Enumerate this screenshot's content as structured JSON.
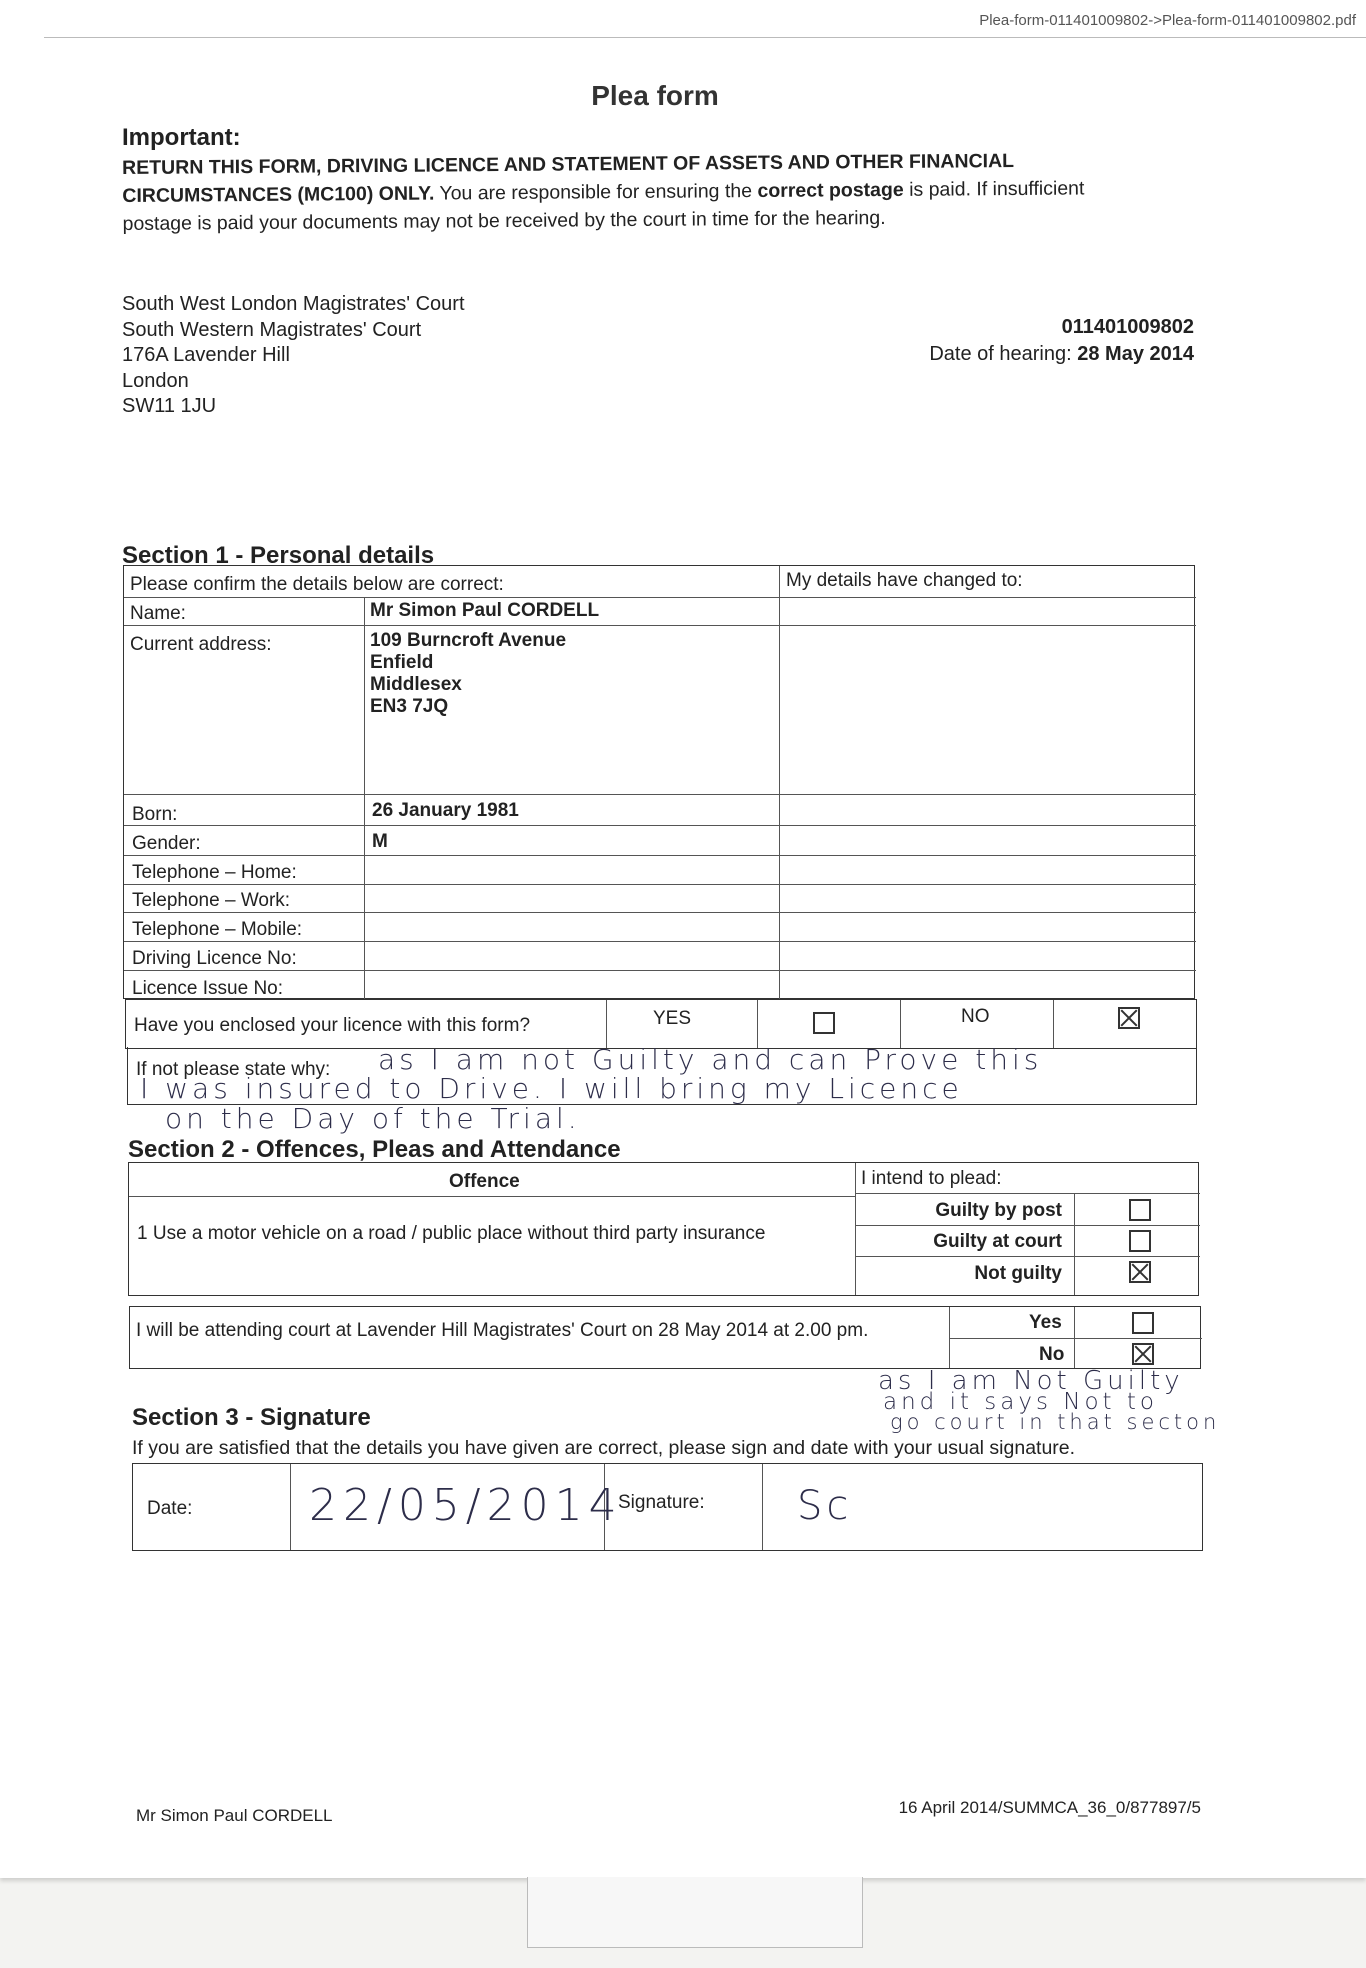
{
  "header": {
    "file_path": "Plea-form-011401009802->Plea-form-011401009802.pdf"
  },
  "title": "Plea form",
  "important": {
    "heading": "Important:",
    "bold_text": "RETURN THIS FORM, DRIVING LICENCE AND STATEMENT OF ASSETS AND OTHER FINANCIAL CIRCUMSTANCES (MC100) ONLY.",
    "text_before": "You are responsible for ensuring the",
    "bold_postage": "correct postage",
    "text_after": "is paid. If insufficient postage is paid your documents may not be received by the court in time for the hearing."
  },
  "court_address": [
    "South West London Magistrates' Court",
    "South Western Magistrates' Court",
    "176A Lavender Hill",
    "London",
    "SW11 1JU"
  ],
  "reference": {
    "number": "011401009802",
    "hearing_label": "Date of hearing:",
    "hearing_date": "28 May 2014"
  },
  "section1": {
    "title": "Section 1 - Personal details",
    "confirm_label": "Please confirm the details below are correct:",
    "changed_label": "My details have changed to:",
    "rows": [
      {
        "label": "Name:",
        "value": "Mr Simon Paul CORDELL"
      },
      {
        "label": "Current address:",
        "value": "109 Burncroft Avenue\nEnfield\nMiddlesex\nEN3 7JQ"
      },
      {
        "label": "Born:",
        "value": "26 January 1981"
      },
      {
        "label": "Gender:",
        "value": "M"
      },
      {
        "label": "Telephone – Home:",
        "value": ""
      },
      {
        "label": "Telephone – Work:",
        "value": ""
      },
      {
        "label": "Telephone – Mobile:",
        "value": ""
      },
      {
        "label": "Driving Licence No:",
        "value": ""
      },
      {
        "label": "Licence Issue No:",
        "value": ""
      }
    ],
    "licence_question": "Have you enclosed your licence with this form?",
    "yes_label": "YES",
    "no_label": "NO",
    "licence_yes_checked": false,
    "licence_no_checked": true,
    "reason_label": "If not please state why:",
    "reason_handwritten": [
      "as I am not Guilty and can Prove this",
      "I was insured to Drive. I will bring my Licence",
      "on the Day of the Trial."
    ]
  },
  "section2": {
    "title": "Section 2 - Offences, Pleas and Attendance",
    "offence_header": "Offence",
    "plea_header": "I intend to plead:",
    "offence": "1 Use a motor vehicle on a road / public place without third party insurance",
    "pleas": [
      {
        "label": "Guilty by post",
        "checked": false
      },
      {
        "label": "Guilty at court",
        "checked": false
      },
      {
        "label": "Not guilty",
        "checked": true
      }
    ],
    "attendance_text": "I will be attending court at Lavender Hill Magistrates' Court on 28 May 2014 at 2.00 pm.",
    "attendance": [
      {
        "label": "Yes",
        "checked": false
      },
      {
        "label": "No",
        "checked": true
      }
    ],
    "attendance_note_handwritten": [
      "as I am Not Guilty",
      "and it says Not to",
      "go court in that secton"
    ]
  },
  "section3": {
    "title": "Section 3 - Signature",
    "instruction": "If you are satisfied that the details you have given are correct, please sign and date with your usual signature.",
    "date_label": "Date:",
    "date_value": "22/05/2014",
    "signature_label": "Signature:",
    "signature_value": "Sc"
  },
  "footer": {
    "name": "Mr Simon Paul CORDELL",
    "ref": "16 April 2014/SUMMCA_36_0/877897/5"
  }
}
